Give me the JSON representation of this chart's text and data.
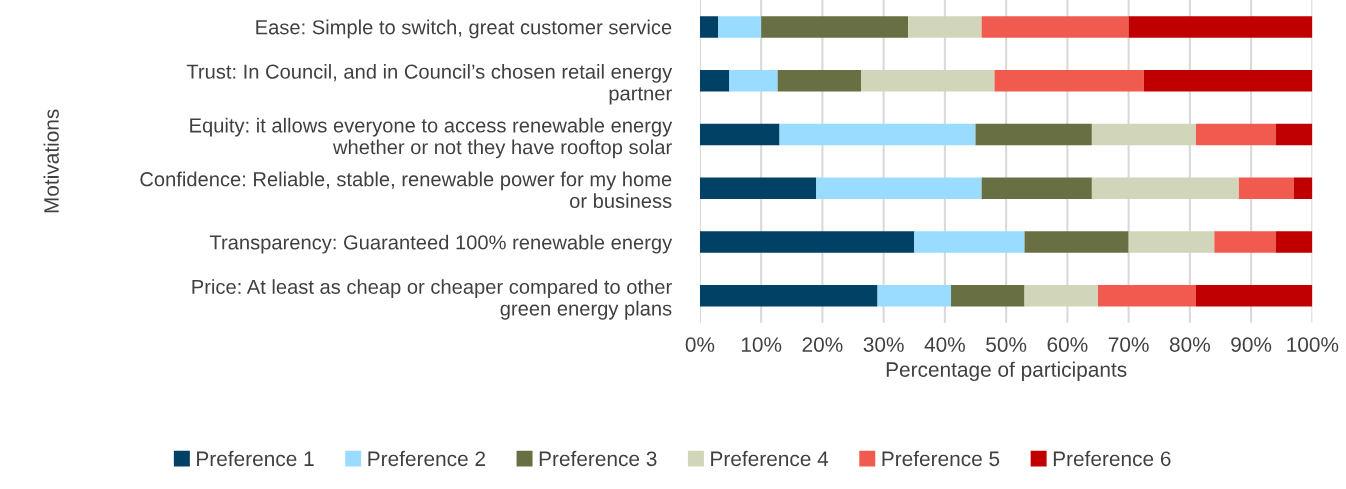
{
  "chart_data": {
    "type": "bar",
    "orientation": "horizontal",
    "stacked": true,
    "categories": [
      "Ease: Simple to switch, great customer service",
      "Trust: In Council, and in Council’s chosen retail energy\npartner",
      "Equity: it allows everyone to access renewable energy\nwhether or not they have rooftop solar",
      "Confidence: Reliable, stable, renewable power for my home\nor business",
      "Transparency: Guaranteed 100% renewable energy",
      "Price: At least as cheap or cheaper compared to other\ngreen energy plans"
    ],
    "series": [
      {
        "name": "Preference 1",
        "color": "#004165",
        "values": [
          3,
          4.8,
          13,
          19,
          35,
          29
        ]
      },
      {
        "name": "Preference 2",
        "color": "#99dcff",
        "values": [
          7,
          7.9,
          32,
          27,
          18,
          12
        ]
      },
      {
        "name": "Preference 3",
        "color": "#686f42",
        "values": [
          24,
          13.6,
          19,
          18,
          17,
          12
        ]
      },
      {
        "name": "Preference 4",
        "color": "#d1d5ba",
        "values": [
          12,
          21.8,
          17,
          24,
          14,
          12
        ]
      },
      {
        "name": "Preference 5",
        "color": "#f15b4f",
        "values": [
          24,
          24.4,
          13,
          9,
          10,
          16
        ]
      },
      {
        "name": "Preference 6",
        "color": "#c00000",
        "values": [
          30,
          27.5,
          6,
          3,
          6,
          19
        ]
      }
    ],
    "xlim": [
      0,
      100
    ],
    "xticks": [
      {
        "value": 0,
        "label": "0%"
      },
      {
        "value": 10,
        "label": "10%"
      },
      {
        "value": 20,
        "label": "20%"
      },
      {
        "value": 30,
        "label": "30%"
      },
      {
        "value": 40,
        "label": "40%"
      },
      {
        "value": 50,
        "label": "50%"
      },
      {
        "value": 60,
        "label": "60%"
      },
      {
        "value": 70,
        "label": "70%"
      },
      {
        "value": 80,
        "label": "80%"
      },
      {
        "value": 90,
        "label": "90%"
      },
      {
        "value": 100,
        "label": "100%"
      }
    ],
    "xlabel": "Percentage of participants",
    "ylabel": "Motivations",
    "grid": "x",
    "legend": "bottom"
  }
}
